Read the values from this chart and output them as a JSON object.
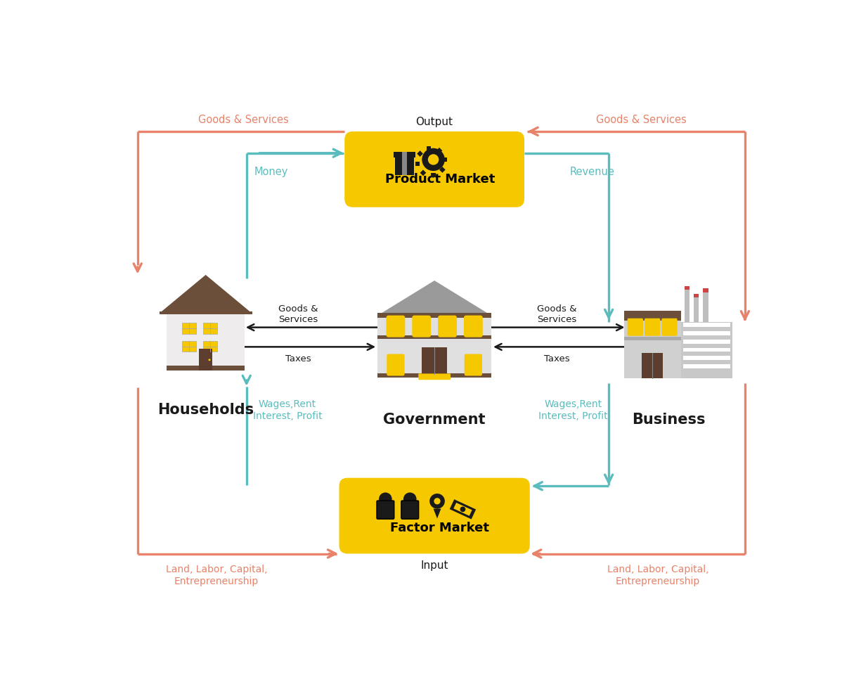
{
  "bg_color": "#ffffff",
  "salmon": "#E8826A",
  "teal": "#5BBCBE",
  "yellow": "#F5C800",
  "dark_brown": "#5C3D2E",
  "gray_body": "#D8D8D8",
  "light_gray": "#EBEBEB",
  "mid_gray": "#AAAAAA",
  "dark_gray": "#888888",
  "black": "#1A1A1A",
  "roof_brown": "#6B4F3A",
  "product_market_label": "Product Market",
  "factor_market_label": "Factor Market",
  "households_label": "Households",
  "government_label": "Government",
  "business_label": "Business",
  "output_label": "Output",
  "input_label": "Input",
  "goods_services_top_left": "Goods & Services",
  "goods_services_top_right": "Goods & Services",
  "money_label": "Money",
  "revenue_label": "Revenue",
  "taxes_left": "Taxes",
  "taxes_right": "Taxes",
  "wages_left": "Wages,Rent\nInterest, Profit",
  "wages_right": "Wages,Rent\nInterest, Profit",
  "land_labor_left": "Land, Labor, Capital,\nEntrepreneurship",
  "land_labor_right": "Land, Labor, Capital,\nEntrepreneurship"
}
